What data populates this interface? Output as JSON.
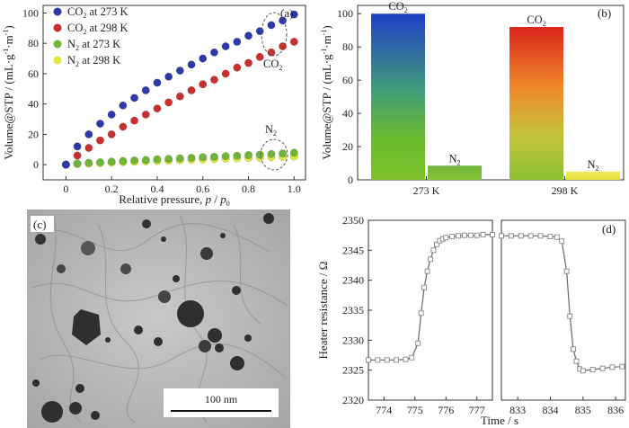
{
  "chart_data": [
    {
      "panel_label": "(a)",
      "type": "scatter",
      "xlabel": "Relative pressure, p / p0",
      "ylabel": "Volume@STP / (mL·g-1·m-1)",
      "xlim": [
        -0.1,
        1.05
      ],
      "ylim": [
        -10,
        105
      ],
      "xticks": [
        "0",
        "0.2",
        "0.4",
        "0.6",
        "0.8",
        "1.0"
      ],
      "yticks": [
        "0",
        "20",
        "40",
        "60",
        "80",
        "100"
      ],
      "legend_position": "top-left",
      "series": [
        {
          "name": "CO2 at 273 K",
          "color": "#2b3aa8",
          "x": [
            0.0,
            0.05,
            0.1,
            0.15,
            0.2,
            0.25,
            0.3,
            0.35,
            0.4,
            0.45,
            0.5,
            0.55,
            0.6,
            0.65,
            0.7,
            0.75,
            0.8,
            0.85,
            0.9,
            0.95,
            1.0
          ],
          "y": [
            0,
            12,
            20,
            27,
            33,
            39,
            44,
            49,
            54,
            58,
            62,
            66,
            70,
            74,
            78,
            81,
            85,
            88,
            92,
            95,
            99
          ]
        },
        {
          "name": "CO2 at 298 K",
          "color": "#c92f2f",
          "x": [
            0.0,
            0.05,
            0.1,
            0.15,
            0.2,
            0.25,
            0.3,
            0.35,
            0.4,
            0.45,
            0.5,
            0.55,
            0.6,
            0.65,
            0.7,
            0.75,
            0.8,
            0.85,
            0.9,
            0.95,
            1.0
          ],
          "y": [
            0,
            6,
            11,
            16,
            20,
            25,
            29,
            33,
            37,
            41,
            45,
            49,
            53,
            56,
            60,
            64,
            67,
            71,
            74,
            78,
            81
          ]
        },
        {
          "name": "N2 at 273 K",
          "color": "#6fb53a",
          "x": [
            0.0,
            0.05,
            0.1,
            0.15,
            0.2,
            0.25,
            0.3,
            0.35,
            0.4,
            0.45,
            0.5,
            0.55,
            0.6,
            0.65,
            0.7,
            0.75,
            0.8,
            0.85,
            0.9,
            0.95,
            1.0
          ],
          "y": [
            0,
            0.8,
            1.2,
            1.6,
            2.0,
            2.4,
            2.8,
            3.1,
            3.5,
            3.8,
            4.2,
            4.5,
            4.9,
            5.2,
            5.6,
            5.9,
            6.3,
            6.6,
            7.0,
            7.4,
            7.8
          ]
        },
        {
          "name": "N2 at 298 K",
          "color": "#e3e83a",
          "x": [
            0.0,
            0.05,
            0.1,
            0.15,
            0.2,
            0.25,
            0.3,
            0.35,
            0.4,
            0.45,
            0.5,
            0.55,
            0.6,
            0.65,
            0.7,
            0.75,
            0.8,
            0.85,
            0.9,
            0.95,
            1.0
          ],
          "y": [
            0,
            0.4,
            0.7,
            1.0,
            1.3,
            1.6,
            1.9,
            2.1,
            2.4,
            2.6,
            2.9,
            3.1,
            3.4,
            3.6,
            3.9,
            4.1,
            4.4,
            4.6,
            4.9,
            5.1,
            5.4
          ]
        }
      ],
      "annotations": [
        "CO2",
        "N2"
      ]
    },
    {
      "panel_label": "(b)",
      "type": "bar",
      "ylabel": "Volume@STP / (mL·g-1·m-1)",
      "ylim": [
        0,
        105
      ],
      "yticks": [
        "0",
        "20",
        "40",
        "60",
        "80",
        "100"
      ],
      "categories": [
        "273 K",
        "298 K"
      ],
      "series": [
        {
          "name": "CO2",
          "values": [
            100,
            92
          ]
        },
        {
          "name": "N2",
          "values": [
            8.5,
            5
          ]
        }
      ]
    },
    {
      "panel_label": "(c)",
      "type": "image",
      "scale_bar": "100 nm"
    },
    {
      "panel_label": "(d)",
      "type": "line",
      "ylabel": "Heater resistance / Ω",
      "xlabel": "Time / s",
      "ylim": [
        2320,
        2350
      ],
      "yticks": [
        "2320",
        "2325",
        "2330",
        "2335",
        "2340",
        "2345",
        "2350"
      ],
      "panels": [
        {
          "xlim": [
            773.5,
            777.5
          ],
          "xticks": [
            "774",
            "775",
            "776",
            "777"
          ],
          "x": [
            773.5,
            773.8,
            774.1,
            774.4,
            774.7,
            774.9,
            775.1,
            775.2,
            775.3,
            775.4,
            775.5,
            775.6,
            775.7,
            775.8,
            775.9,
            776.0,
            776.2,
            776.4,
            776.6,
            776.8,
            777.0,
            777.2,
            777.5
          ],
          "y": [
            2326.7,
            2326.7,
            2326.7,
            2326.7,
            2326.8,
            2327.1,
            2329.5,
            2334.5,
            2338.8,
            2341.5,
            2343.5,
            2345.0,
            2346.0,
            2346.6,
            2346.9,
            2347.1,
            2347.3,
            2347.4,
            2347.5,
            2347.5,
            2347.5,
            2347.6,
            2347.6
          ]
        },
        {
          "xlim": [
            832.5,
            836.3
          ],
          "xticks": [
            "833",
            "834",
            "835",
            "836"
          ],
          "x": [
            832.5,
            832.8,
            833.1,
            833.4,
            833.7,
            834.0,
            834.2,
            834.35,
            834.5,
            834.6,
            834.7,
            834.8,
            834.9,
            835.0,
            835.3,
            835.6,
            835.9,
            836.2
          ],
          "y": [
            2347.4,
            2347.4,
            2347.4,
            2347.4,
            2347.4,
            2347.3,
            2347.2,
            2346.5,
            2341.5,
            2334.0,
            2328.5,
            2326.5,
            2325.2,
            2324.9,
            2325.1,
            2325.3,
            2325.5,
            2325.6
          ]
        }
      ]
    }
  ]
}
